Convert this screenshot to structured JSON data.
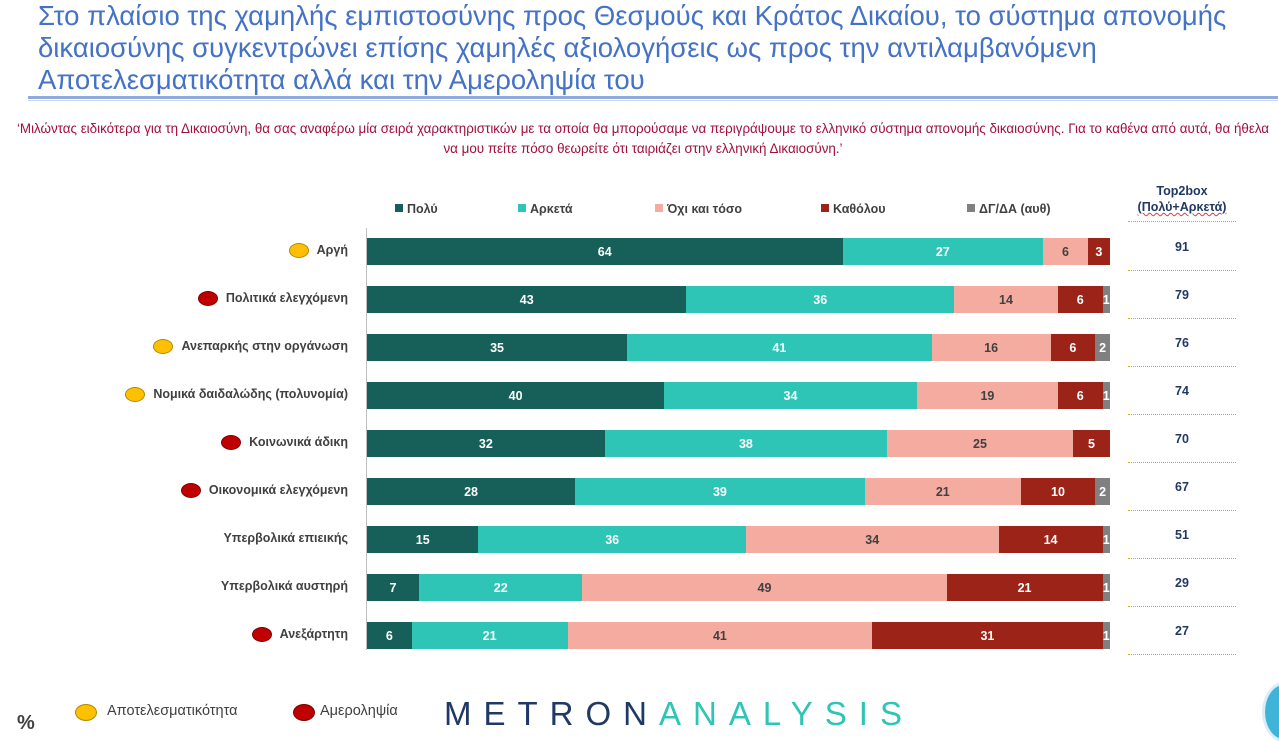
{
  "title": "Στο πλαίσιο της χαμηλής εμπιστοσύνης προς Θεσμούς και Κράτος Δικαίου, το σύστημα απονομής δικαιοσύνης συγκεντρώνει επίσης χαμηλές αξιολογήσεις ως προς την  αντιλαμβανόμενη Αποτελεσματικότητα αλλά και την Αμεροληψία του",
  "question": "‘Μιλώντας ειδικότερα για τη Δικαιοσύνη, θα σας αναφέρω μία σειρά χαρακτηριστικών με τα οποία θα μπορούσαμε να περιγράψουμε το ελληνικό σύστημα απονομής δικαιοσύνης. Για το καθένα από αυτά, θα ήθελα να μου πείτε πόσο θεωρείτε ότι ταιριάζει στην ελληνική Δικαιοσύνη.’",
  "top2box_header": {
    "line1": "Top2box",
    "line2": "(Πολύ+Αρκετά)"
  },
  "unit_label": "%",
  "footer_legend": [
    {
      "label": "Αποτελεσματικότητα",
      "color": "#ffc000"
    },
    {
      "label": "Αμεροληψία",
      "color": "#c00000"
    }
  ],
  "logo": {
    "part1": "METRON",
    "part2": "ANALYSIS"
  },
  "chart_data": {
    "type": "bar",
    "orientation": "horizontal",
    "stacked": true,
    "xlim": [
      0,
      100
    ],
    "categories": [
      "Αργή",
      "Πολιτικά ελεγχόμενη",
      "Ανεπαρκής στην οργάνωση",
      "Νομικά δαιδαλώδης (πολυνομία)",
      "Κοινωνικά άδικη",
      "Οικονομικά ελεγχόμενη",
      "Υπερβολικά επιεικής",
      "Υπερβολικά αυστηρή",
      "Ανεξάρτητη"
    ],
    "category_dimension": [
      "yellow",
      "red",
      "yellow",
      "yellow",
      "red",
      "red",
      "none",
      "none",
      "red"
    ],
    "series": [
      {
        "name": "Πολύ",
        "color": "#17605a",
        "label_color": "#ffffff",
        "values": [
          64,
          43,
          35,
          40,
          32,
          28,
          15,
          7,
          6
        ]
      },
      {
        "name": "Αρκετά",
        "color": "#2ec4b6",
        "label_color": "#ffffff",
        "values": [
          27,
          36,
          41,
          34,
          38,
          39,
          36,
          22,
          21
        ]
      },
      {
        "name": "Όχι και τόσο",
        "color": "#f4aca0",
        "label_color": "#404040",
        "values": [
          6,
          14,
          16,
          19,
          25,
          21,
          34,
          49,
          41
        ]
      },
      {
        "name": "Καθόλου",
        "color": "#9c2317",
        "label_color": "#ffffff",
        "values": [
          3,
          6,
          6,
          6,
          5,
          10,
          14,
          21,
          31
        ]
      },
      {
        "name": "ΔΓ/ΔΑ (αυθ)",
        "color": "#808080",
        "label_color": "#ffffff",
        "values": [
          0,
          1,
          2,
          1,
          0,
          2,
          1,
          1,
          1
        ]
      }
    ],
    "top2box": [
      91,
      79,
      76,
      74,
      70,
      67,
      51,
      29,
      27
    ]
  }
}
